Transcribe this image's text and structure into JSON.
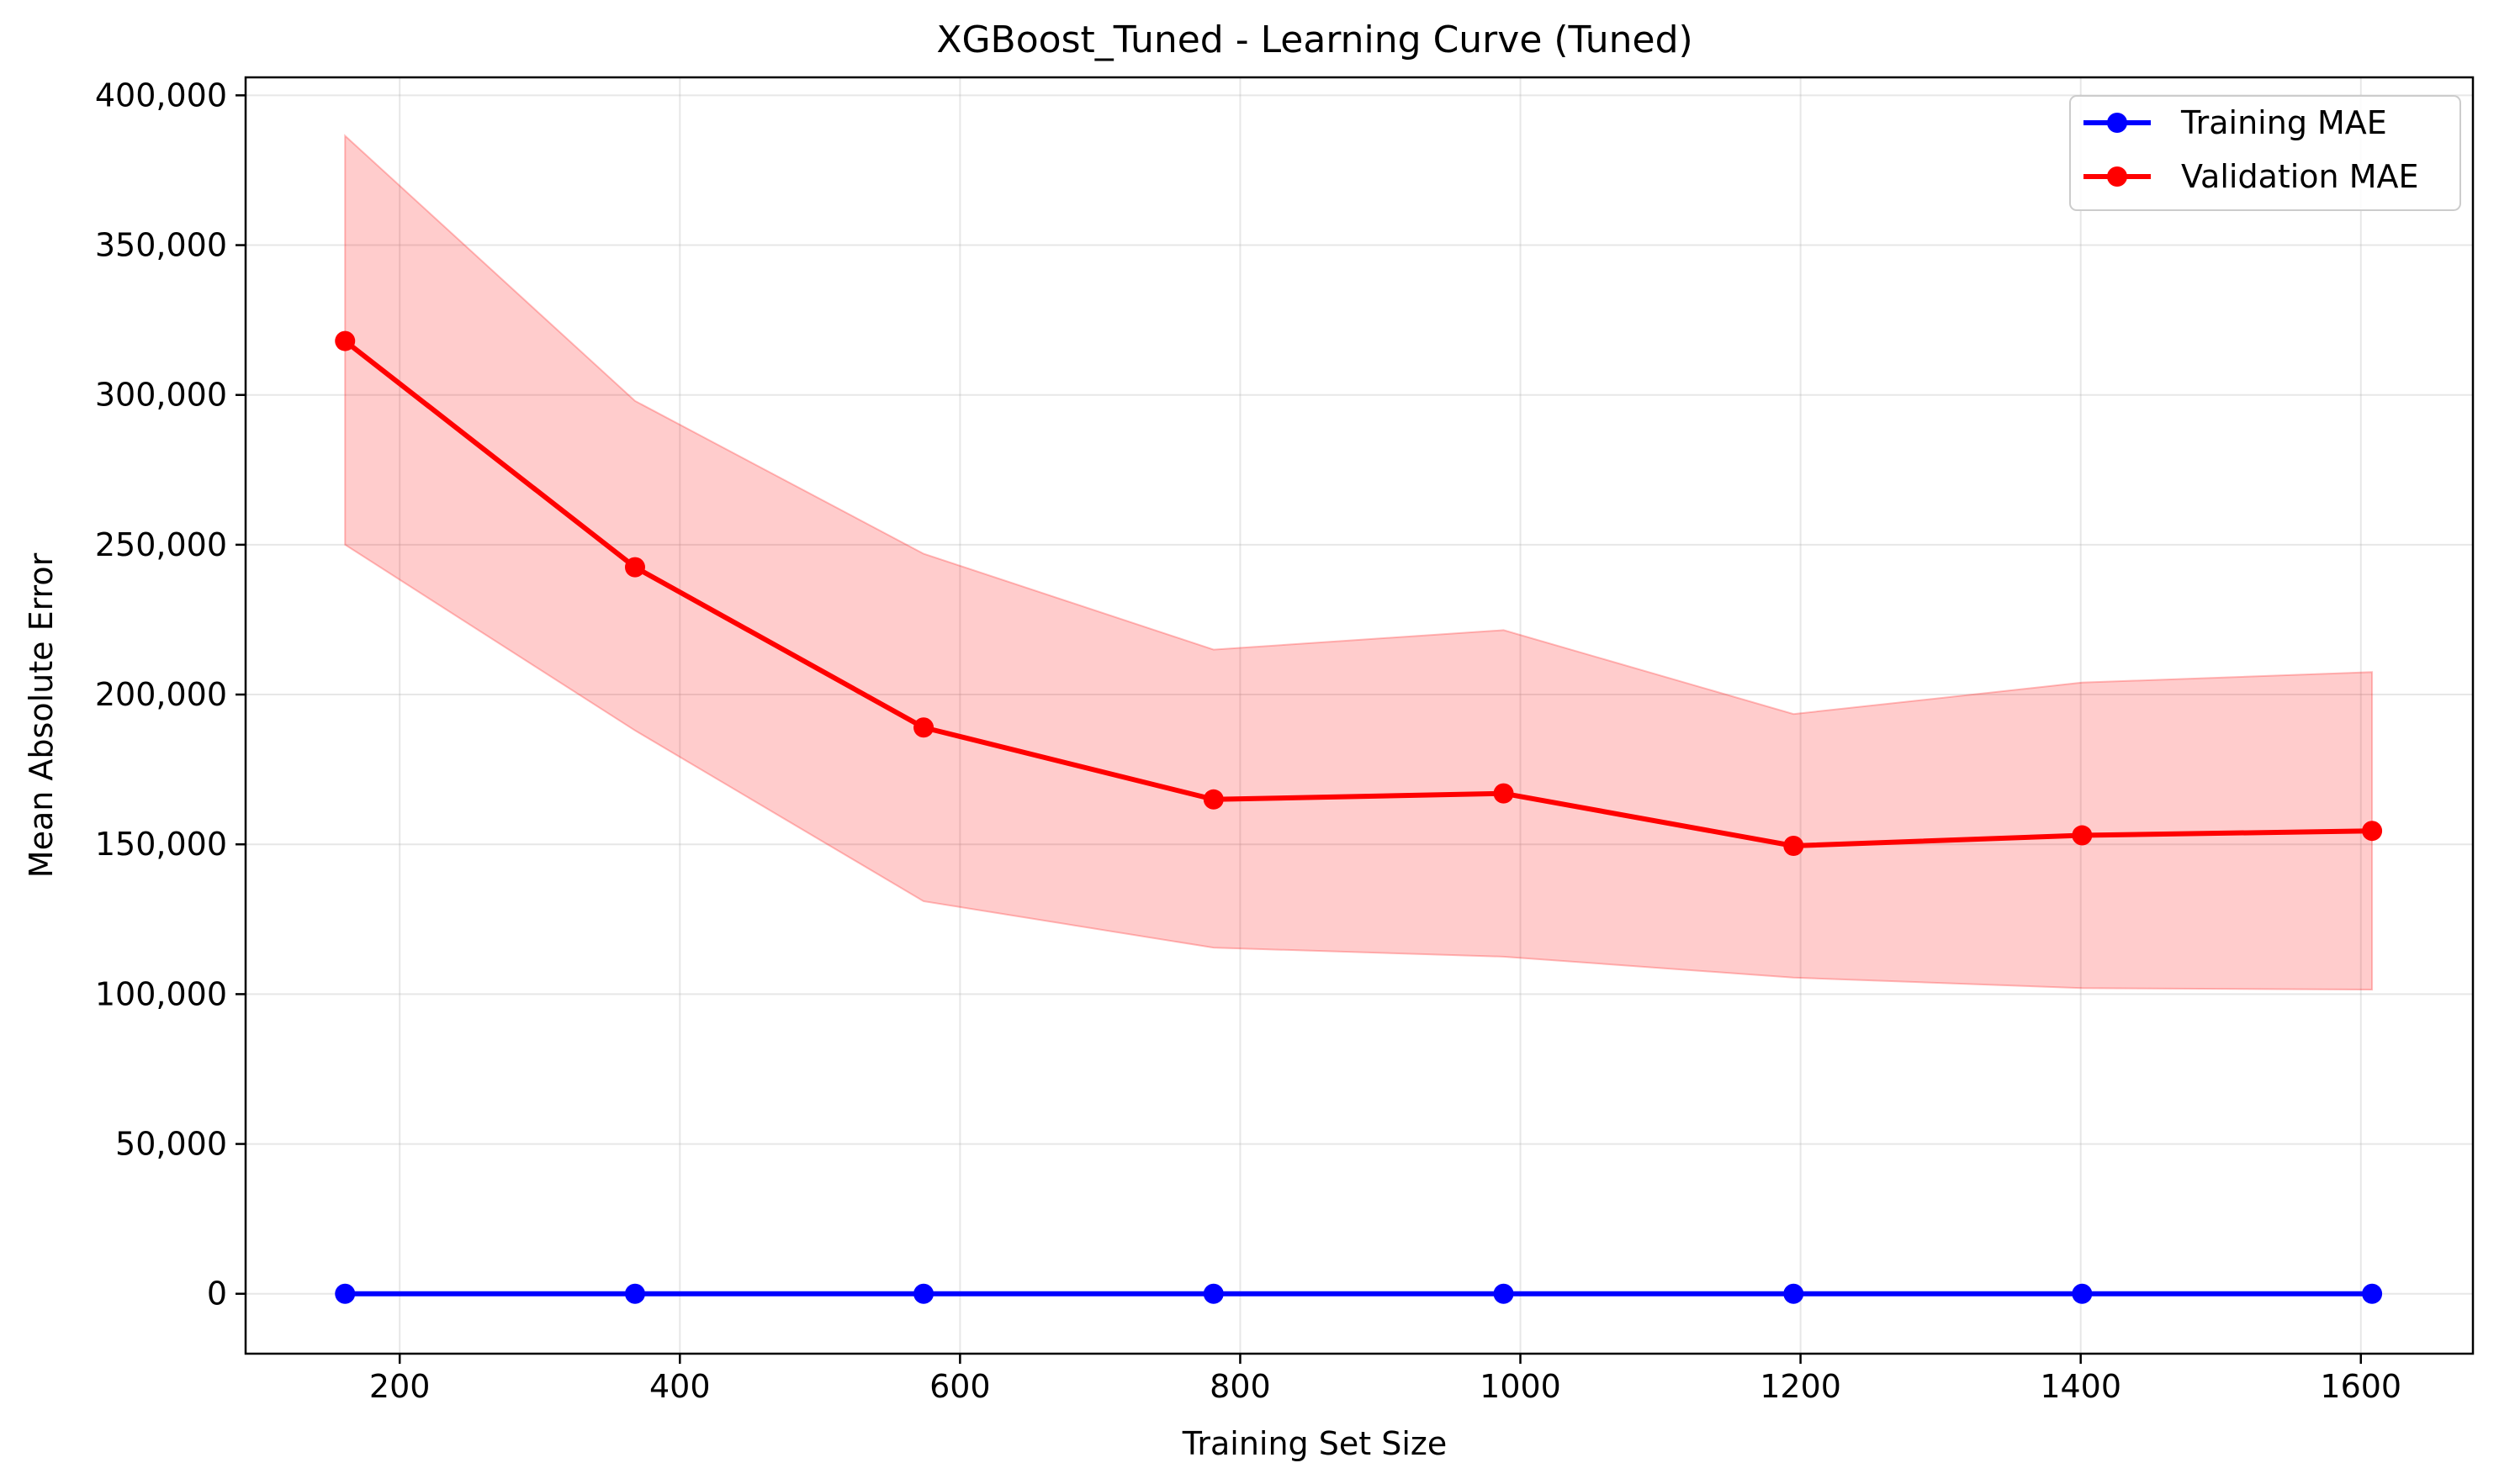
{
  "chart_data": {
    "type": "line",
    "title": "XGBoost_Tuned - Learning Curve (Tuned)",
    "xlabel": "Training Set Size",
    "ylabel": "Mean Absolute Error",
    "xlim": [
      90,
      1680
    ],
    "ylim": [
      -20000,
      406000
    ],
    "xticks": [
      200,
      400,
      600,
      800,
      1000,
      1200,
      1400,
      1600
    ],
    "xtick_labels": [
      "200",
      "400",
      "600",
      "800",
      "1000",
      "1200",
      "1400",
      "1600"
    ],
    "yticks": [
      0,
      50000,
      100000,
      150000,
      200000,
      250000,
      300000,
      350000,
      400000
    ],
    "ytick_labels": [
      "0",
      "50,000",
      "100,000",
      "150,000",
      "200,000",
      "250,000",
      "300,000",
      "350,000",
      "400,000"
    ],
    "grid": true,
    "legend_position": "top-right",
    "x": [
      161,
      368,
      574,
      781,
      988,
      1195,
      1401,
      1608
    ],
    "series": [
      {
        "name": "Training MAE",
        "color": "#0000ff",
        "marker": "circle",
        "values": [
          0,
          0,
          0,
          0,
          0,
          0,
          0,
          0
        ]
      },
      {
        "name": "Validation MAE",
        "color": "#ff0000",
        "marker": "circle",
        "values": [
          318000,
          242500,
          189000,
          165000,
          167000,
          149500,
          153000,
          154500
        ],
        "band_upper": [
          386500,
          298000,
          247000,
          215000,
          221500,
          193500,
          204000,
          207500
        ],
        "band_lower": [
          250000,
          188000,
          131000,
          115500,
          112500,
          105500,
          102000,
          101500
        ],
        "band_color": "#ff0000"
      }
    ]
  }
}
